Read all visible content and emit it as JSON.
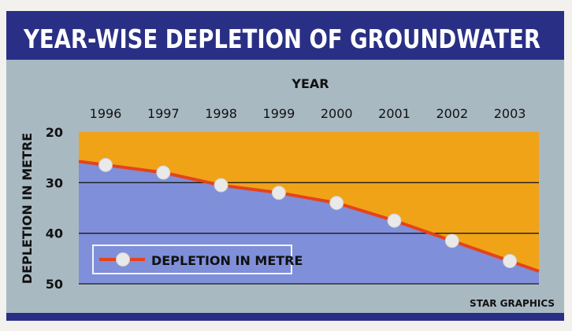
{
  "chart_data": {
    "type": "area",
    "title": "YEAR-WISE DEPLETION OF GROUNDWATER",
    "xlabel": "YEAR",
    "ylabel": "DEPLETION IN METRE",
    "categories": [
      "1996",
      "1997",
      "1998",
      "1999",
      "2000",
      "2001",
      "2002",
      "2003"
    ],
    "series": [
      {
        "name": "DEPLETION IN METRE",
        "values": [
          26.5,
          28,
          30.5,
          32,
          34,
          37.5,
          41.5,
          45.5
        ]
      }
    ],
    "yticks": [
      "20",
      "30",
      "40",
      "50"
    ],
    "ylim": [
      20,
      50
    ],
    "y_inverted": true,
    "x_axis_position": "top",
    "legend_position": "bottom-left",
    "grid": true,
    "credit": "STAR GRAPHICS",
    "colors": {
      "title_bar": "#2a2f86",
      "background": "#a9b9c2",
      "upper_fill": "#f0a316",
      "lower_fill": "#7f8fd9",
      "line": "#e5431c",
      "marker": "#e9e9e9"
    }
  }
}
